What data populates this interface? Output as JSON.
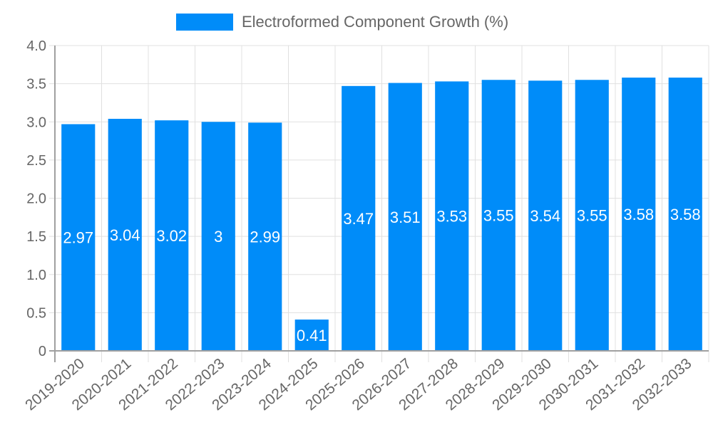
{
  "chart_data": {
    "type": "bar",
    "title": "",
    "xlabel": "",
    "ylabel": "",
    "ylim": [
      0,
      4.0
    ],
    "yticks": [
      0,
      0.5,
      1.0,
      1.5,
      2.0,
      2.5,
      3.0,
      3.5,
      4.0
    ],
    "ytick_labels": [
      "0",
      "0.5",
      "1.0",
      "1.5",
      "2.0",
      "2.5",
      "3.0",
      "3.5",
      "4.0"
    ],
    "grid": true,
    "legend_position": "top",
    "categories": [
      "2019-2020",
      "2020-2021",
      "2021-2022",
      "2022-2023",
      "2023-2024",
      "2024-2025",
      "2025-2026",
      "2026-2027",
      "2027-2028",
      "2028-2029",
      "2029-2030",
      "2030-2031",
      "2031-2032",
      "2032-2033"
    ],
    "series": [
      {
        "name": "Electroformed Component Growth (%)",
        "color": "#008cf9",
        "values": [
          2.97,
          3.04,
          3.02,
          3,
          2.99,
          0.41,
          3.47,
          3.51,
          3.53,
          3.55,
          3.54,
          3.55,
          3.58,
          3.58
        ],
        "data_labels": [
          "2.97",
          "3.04",
          "3.02",
          "3",
          "2.99",
          "0.41",
          "3.47",
          "3.51",
          "3.53",
          "3.55",
          "3.54",
          "3.55",
          "3.58",
          "3.58"
        ]
      }
    ]
  },
  "legend": {
    "label": "Electroformed Component Growth (%)",
    "color": "#008cf9"
  }
}
